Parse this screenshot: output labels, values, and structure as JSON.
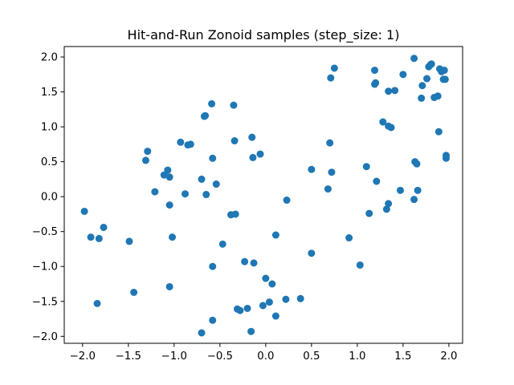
{
  "chart_data": {
    "type": "scatter",
    "title": "Hit-and-Run Zonoid samples (step_size: 1)",
    "xlabel": "",
    "ylabel": "",
    "xlim": [
      -2.2,
      2.15
    ],
    "ylim": [
      -2.1,
      2.15
    ],
    "x_ticks": [
      -2.0,
      -1.5,
      -1.0,
      -0.5,
      0.0,
      0.5,
      1.0,
      1.5,
      2.0
    ],
    "x_tick_labels": [
      "−2.0",
      "−1.5",
      "−1.0",
      "−0.5",
      "0.0",
      "0.5",
      "1.0",
      "1.5",
      "2.0"
    ],
    "y_ticks": [
      -2.0,
      -1.5,
      -1.0,
      -0.5,
      0.0,
      0.5,
      1.0,
      1.5,
      2.0
    ],
    "y_tick_labels": [
      "−2.0",
      "−1.5",
      "−1.0",
      "−0.5",
      "0.0",
      "0.5",
      "1.0",
      "1.5",
      "2.0"
    ],
    "grid": false,
    "legend": "none",
    "marker_color": "#1f77b4",
    "series": [
      {
        "name": "",
        "points": [
          [
            -1.98,
            -0.21
          ],
          [
            -1.91,
            -0.58
          ],
          [
            -1.84,
            -1.53
          ],
          [
            -1.82,
            -0.6
          ],
          [
            -1.77,
            -0.44
          ],
          [
            -1.49,
            -0.64
          ],
          [
            -1.44,
            -1.37
          ],
          [
            -1.31,
            0.52
          ],
          [
            -1.29,
            0.65
          ],
          [
            -1.21,
            0.07
          ],
          [
            -1.11,
            0.31
          ],
          [
            -1.07,
            0.38
          ],
          [
            -1.05,
            0.28
          ],
          [
            -1.05,
            -0.12
          ],
          [
            -1.05,
            -1.29
          ],
          [
            -1.02,
            -0.58
          ],
          [
            -0.93,
            0.78
          ],
          [
            -0.88,
            0.04
          ],
          [
            -0.85,
            0.74
          ],
          [
            -0.82,
            0.75
          ],
          [
            -0.7,
            0.25
          ],
          [
            -0.7,
            -1.95
          ],
          [
            -0.67,
            1.15
          ],
          [
            -0.66,
            1.16
          ],
          [
            -0.65,
            0.03
          ],
          [
            -0.59,
            1.33
          ],
          [
            -0.58,
            0.55
          ],
          [
            -0.58,
            -1.77
          ],
          [
            -0.58,
            -1.0
          ],
          [
            -0.54,
            0.18
          ],
          [
            -0.47,
            -0.68
          ],
          [
            -0.38,
            -0.26
          ],
          [
            -0.35,
            1.31
          ],
          [
            -0.34,
            0.8
          ],
          [
            -0.33,
            -0.25
          ],
          [
            -0.31,
            -1.61
          ],
          [
            -0.28,
            -1.63
          ],
          [
            -0.23,
            -0.93
          ],
          [
            -0.2,
            -1.6
          ],
          [
            -0.16,
            -1.93
          ],
          [
            -0.15,
            0.85
          ],
          [
            -0.14,
            0.56
          ],
          [
            -0.13,
            -0.95
          ],
          [
            -0.06,
            0.61
          ],
          [
            -0.03,
            -1.56
          ],
          [
            0.0,
            -1.17
          ],
          [
            0.04,
            -1.51
          ],
          [
            0.07,
            -1.25
          ],
          [
            0.11,
            -0.55
          ],
          [
            0.11,
            -1.71
          ],
          [
            0.22,
            -1.47
          ],
          [
            0.23,
            -0.05
          ],
          [
            0.38,
            -1.46
          ],
          [
            0.5,
            0.39
          ],
          [
            0.5,
            -0.81
          ],
          [
            0.68,
            0.11
          ],
          [
            0.7,
            0.77
          ],
          [
            0.71,
            1.7
          ],
          [
            0.72,
            0.35
          ],
          [
            0.75,
            1.84
          ],
          [
            0.91,
            -0.59
          ],
          [
            1.03,
            -0.98
          ],
          [
            1.1,
            0.43
          ],
          [
            1.13,
            -0.24
          ],
          [
            1.19,
            1.81
          ],
          [
            1.19,
            1.61
          ],
          [
            1.2,
            1.63
          ],
          [
            1.21,
            0.22
          ],
          [
            1.28,
            1.07
          ],
          [
            1.32,
            -0.18
          ],
          [
            1.34,
            -0.1
          ],
          [
            1.34,
            1.01
          ],
          [
            1.34,
            1.51
          ],
          [
            1.37,
            0.99
          ],
          [
            1.41,
            1.52
          ],
          [
            1.47,
            0.09
          ],
          [
            1.5,
            1.75
          ],
          [
            1.62,
            1.98
          ],
          [
            1.62,
            -0.04
          ],
          [
            1.63,
            0.5
          ],
          [
            1.65,
            0.47
          ],
          [
            1.66,
            0.09
          ],
          [
            1.7,
            1.41
          ],
          [
            1.71,
            1.59
          ],
          [
            1.76,
            1.69
          ],
          [
            1.78,
            1.86
          ],
          [
            1.8,
            1.89
          ],
          [
            1.81,
            1.9
          ],
          [
            1.84,
            1.42
          ],
          [
            1.88,
            1.44
          ],
          [
            1.89,
            0.93
          ],
          [
            1.9,
            1.83
          ],
          [
            1.92,
            1.79
          ],
          [
            1.94,
            1.68
          ],
          [
            1.95,
            1.81
          ],
          [
            1.96,
            1.68
          ],
          [
            1.97,
            0.59
          ],
          [
            1.97,
            0.55
          ]
        ]
      }
    ]
  }
}
